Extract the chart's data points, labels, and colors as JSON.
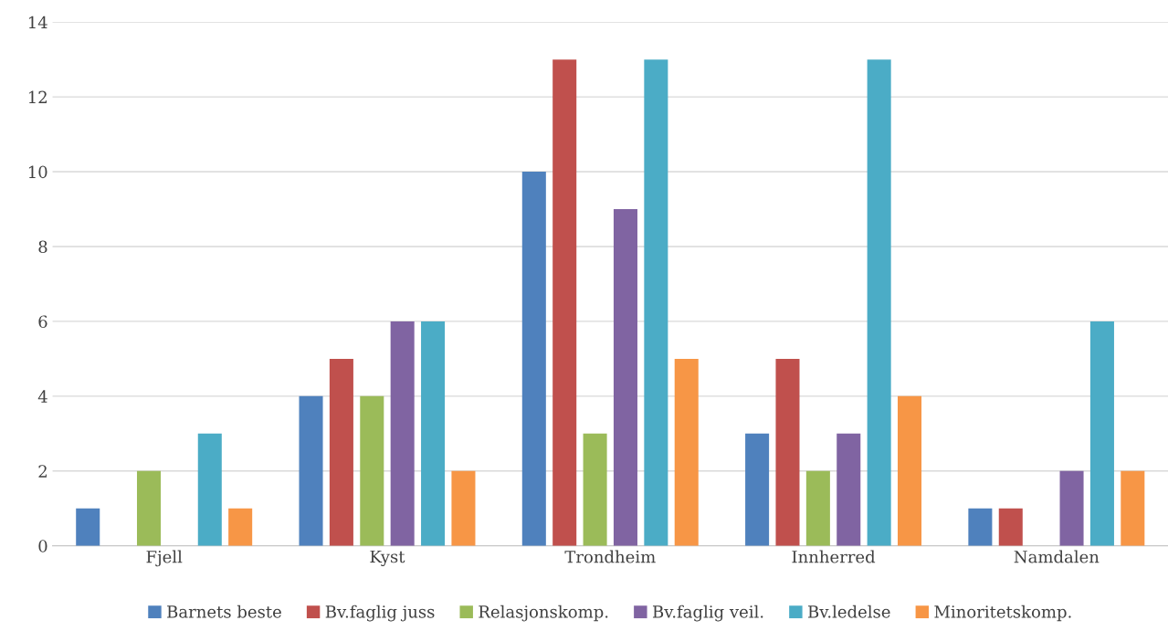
{
  "chart_data": {
    "type": "bar",
    "categories": [
      "Fjell",
      "Kyst",
      "Trondheim",
      "Innherred",
      "Namdalen"
    ],
    "series": [
      {
        "name": "Barnets beste",
        "color": "#4f81bd",
        "values": [
          1,
          4,
          10,
          3,
          1
        ]
      },
      {
        "name": "Bv.faglig juss",
        "color": "#c0504d",
        "values": [
          0,
          5,
          13,
          5,
          1
        ]
      },
      {
        "name": "Relasjonskomp.",
        "color": "#9bbb59",
        "values": [
          2,
          4,
          3,
          2,
          0
        ]
      },
      {
        "name": "Bv.faglig veil.",
        "color": "#8064a2",
        "values": [
          0,
          6,
          9,
          3,
          2
        ]
      },
      {
        "name": "Bv.ledelse",
        "color": "#4bacc6",
        "values": [
          3,
          6,
          13,
          13,
          6
        ]
      },
      {
        "name": "Minoritetskomp.",
        "color": "#f79646",
        "values": [
          1,
          2,
          5,
          4,
          2
        ]
      }
    ],
    "ylim": [
      0,
      14
    ],
    "yticks": [
      0,
      2,
      4,
      6,
      8,
      10,
      12,
      14
    ],
    "grid": "y",
    "legend": "bottom"
  }
}
